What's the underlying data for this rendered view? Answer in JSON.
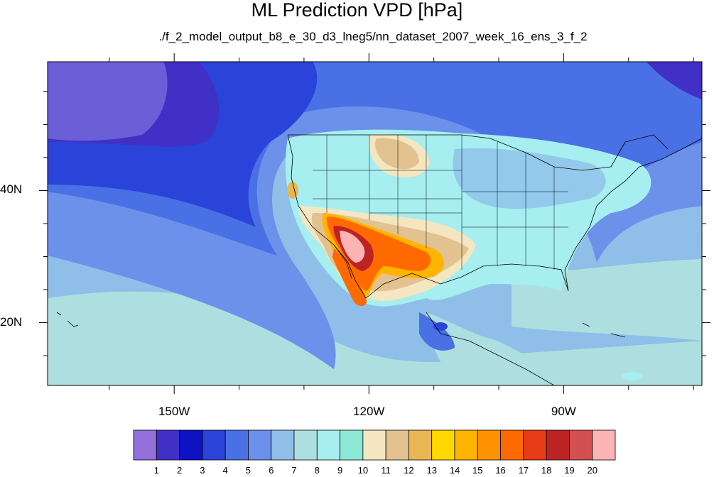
{
  "title": "ML Prediction VPD [hPa]",
  "subtitle": "./f_2_model_output_b8_e_30_d3_lneg5/nn_dataset_2007_week_16_ens_3_f_2",
  "map": {
    "lon_range": [
      -169.5,
      -68.7
    ],
    "lat_range": [
      10.5,
      59.5
    ],
    "lon_ticks": [
      {
        "value": -150,
        "label": "150W"
      },
      {
        "value": -120,
        "label": "120W"
      },
      {
        "value": -90,
        "label": "90W"
      }
    ],
    "lat_ticks": [
      {
        "value": 40,
        "label": "40N"
      },
      {
        "value": 20,
        "label": "20N"
      }
    ]
  },
  "colorbar": {
    "labels": [
      "1",
      "2",
      "3",
      "4",
      "5",
      "6",
      "7",
      "8",
      "9",
      "10",
      "11",
      "12",
      "13",
      "14",
      "15",
      "16",
      "17",
      "18",
      "19",
      "20"
    ],
    "colors": [
      "#9370db",
      "#4130c6",
      "#0d12c2",
      "#2a43d8",
      "#4970e4",
      "#6b91ea",
      "#8fbfe8",
      "#aedfe0",
      "#a6eef0",
      "#8ce8d4",
      "#f3e6c0",
      "#e2c290",
      "#e9b653",
      "#ffd800",
      "#ffb400",
      "#ff9200",
      "#ff6a00",
      "#e83c16",
      "#bc2424",
      "#d25050",
      "#fbb4b4"
    ]
  }
}
